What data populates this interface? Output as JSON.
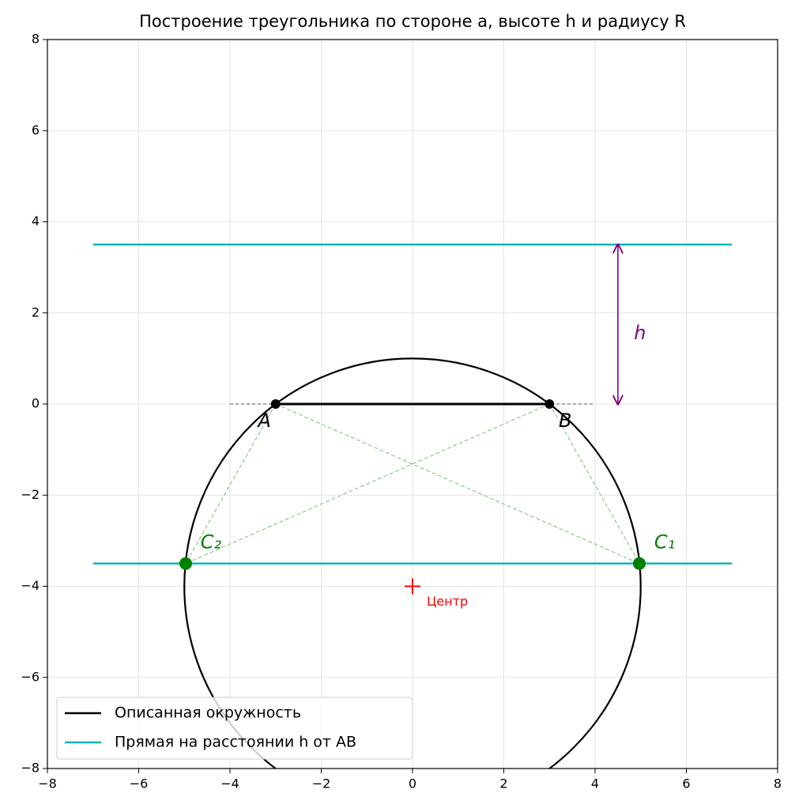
{
  "chart_data": {
    "type": "construction",
    "title": "Построение треугольника по стороне a, высоте h и радиусу R",
    "xlim": [
      -8,
      8
    ],
    "ylim": [
      -8,
      8
    ],
    "xticks": [
      {
        "value": -8,
        "label": "−8"
      },
      {
        "value": -6,
        "label": "−6"
      },
      {
        "value": -4,
        "label": "−4"
      },
      {
        "value": -2,
        "label": "−2"
      },
      0,
      2,
      4,
      6,
      8
    ],
    "yticks": [
      {
        "value": -8,
        "label": "−8"
      },
      {
        "value": -6,
        "label": "−6"
      },
      {
        "value": -4,
        "label": "−4"
      },
      {
        "value": -2,
        "label": "−2"
      },
      0,
      2,
      4,
      6,
      8
    ],
    "grid": true,
    "legend": "lower left",
    "circle": {
      "name": "Описанная окружность",
      "color": "#000000",
      "center": [
        0,
        -4
      ],
      "radius": 5,
      "center_label": "Центр",
      "center_color": "#ff0000"
    },
    "parallel_lines": {
      "name": "Прямая на расстоянии h от AB",
      "color": "#00b5b5",
      "x": [
        -7,
        7
      ],
      "y": [
        3.5,
        -3.5
      ]
    },
    "ab_extension": {
      "x": [
        -4,
        4
      ],
      "y": 0
    },
    "points": [
      {
        "label": "A",
        "x": -3,
        "y": 0,
        "color": "#000000"
      },
      {
        "label": "B",
        "x": 3,
        "y": 0,
        "color": "#000000"
      },
      {
        "label": "C₁",
        "x": 4.97,
        "y": -3.5,
        "color": "#008000"
      },
      {
        "label": "C₂",
        "x": -4.97,
        "y": -3.5,
        "color": "#008000"
      }
    ],
    "h_arrow": {
      "label": "h",
      "x": 4.5,
      "y": [
        0,
        3.5
      ],
      "color": "#800080"
    }
  }
}
